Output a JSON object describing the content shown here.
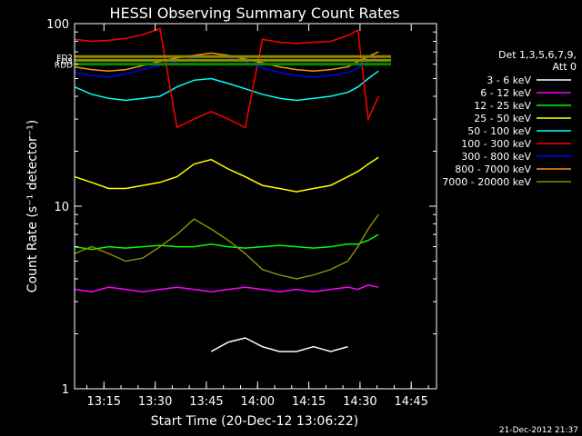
{
  "stamp": "21-Dec-2012 21:37",
  "chart_data": {
    "type": "line",
    "title": "HESSI Observing Summary Count Rates",
    "xlabel": "Start Time (20-Dec-12 13:06:22)",
    "ylabel": "Count Rate (s⁻¹ detector⁻¹)",
    "yscale": "log",
    "ylim": [
      1,
      100
    ],
    "xlim_minutes": [
      0,
      106
    ],
    "x_ticks": [
      {
        "label": "13:15",
        "t": 8.6
      },
      {
        "label": "13:30",
        "t": 23.6
      },
      {
        "label": "13:45",
        "t": 38.6
      },
      {
        "label": "14:00",
        "t": 53.6
      },
      {
        "label": "14:15",
        "t": 68.6
      },
      {
        "label": "14:30",
        "t": 83.6
      },
      {
        "label": "14:45",
        "t": 98.6
      }
    ],
    "y_ticks": [
      {
        "label": "1",
        "v": 1
      },
      {
        "label": "10",
        "v": 10
      },
      {
        "label": "100",
        "v": 100
      }
    ],
    "legend_header": [
      "Det 1,3,5,6,7,9,",
      "Att 0"
    ],
    "legend_position": "right",
    "series": [
      {
        "name": "3 - 6 keV",
        "color": "#ffffff",
        "points": [
          [
            40,
            1.6
          ],
          [
            45,
            1.8
          ],
          [
            50,
            1.9
          ],
          [
            55,
            1.7
          ],
          [
            60,
            1.6
          ],
          [
            65,
            1.6
          ],
          [
            70,
            1.7
          ],
          [
            75,
            1.6
          ],
          [
            80,
            1.7
          ]
        ]
      },
      {
        "name": "6 - 12 keV",
        "color": "#ff00ff",
        "points": [
          [
            0,
            3.5
          ],
          [
            5,
            3.4
          ],
          [
            10,
            3.6
          ],
          [
            15,
            3.5
          ],
          [
            20,
            3.4
          ],
          [
            25,
            3.5
          ],
          [
            30,
            3.6
          ],
          [
            35,
            3.5
          ],
          [
            40,
            3.4
          ],
          [
            45,
            3.5
          ],
          [
            50,
            3.6
          ],
          [
            55,
            3.5
          ],
          [
            60,
            3.4
          ],
          [
            65,
            3.5
          ],
          [
            70,
            3.4
          ],
          [
            75,
            3.5
          ],
          [
            80,
            3.6
          ],
          [
            83,
            3.5
          ],
          [
            86,
            3.7
          ],
          [
            89,
            3.6
          ]
        ]
      },
      {
        "name": "12 - 25 keV",
        "color": "#00ff00",
        "points": [
          [
            0,
            6.0
          ],
          [
            5,
            5.8
          ],
          [
            10,
            6.0
          ],
          [
            15,
            5.9
          ],
          [
            20,
            6.0
          ],
          [
            25,
            6.1
          ],
          [
            30,
            6.0
          ],
          [
            35,
            6.0
          ],
          [
            40,
            6.2
          ],
          [
            45,
            6.0
          ],
          [
            50,
            5.9
          ],
          [
            55,
            6.0
          ],
          [
            60,
            6.1
          ],
          [
            65,
            6.0
          ],
          [
            70,
            5.9
          ],
          [
            75,
            6.0
          ],
          [
            80,
            6.2
          ],
          [
            83,
            6.2
          ],
          [
            86,
            6.5
          ],
          [
            89,
            7.0
          ]
        ]
      },
      {
        "name": "25 - 50 keV",
        "color": "#ffff00",
        "points": [
          [
            0,
            14.5
          ],
          [
            5,
            13.5
          ],
          [
            10,
            12.5
          ],
          [
            15,
            12.5
          ],
          [
            20,
            13.0
          ],
          [
            25,
            13.5
          ],
          [
            30,
            14.5
          ],
          [
            35,
            17.0
          ],
          [
            40,
            18.0
          ],
          [
            45,
            16.0
          ],
          [
            50,
            14.5
          ],
          [
            55,
            13.0
          ],
          [
            60,
            12.5
          ],
          [
            65,
            12.0
          ],
          [
            70,
            12.5
          ],
          [
            75,
            13.0
          ],
          [
            80,
            14.5
          ],
          [
            83,
            15.5
          ],
          [
            86,
            17.0
          ],
          [
            89,
            18.5
          ]
        ]
      },
      {
        "name": "50 - 100 keV",
        "color": "#00ffff",
        "points": [
          [
            0,
            45
          ],
          [
            5,
            41
          ],
          [
            10,
            39
          ],
          [
            15,
            38
          ],
          [
            20,
            39
          ],
          [
            25,
            40
          ],
          [
            30,
            45
          ],
          [
            35,
            49
          ],
          [
            40,
            50
          ],
          [
            45,
            47
          ],
          [
            50,
            44
          ],
          [
            55,
            41
          ],
          [
            60,
            39
          ],
          [
            65,
            38
          ],
          [
            70,
            39
          ],
          [
            75,
            40
          ],
          [
            80,
            42
          ],
          [
            83,
            45
          ],
          [
            86,
            50
          ],
          [
            89,
            55
          ]
        ]
      },
      {
        "name": "100 - 300 keV",
        "color": "#ff0000",
        "points": [
          [
            0,
            82
          ],
          [
            5,
            80
          ],
          [
            10,
            81
          ],
          [
            15,
            83
          ],
          [
            20,
            87
          ],
          [
            25,
            94
          ],
          [
            30,
            27
          ],
          [
            35,
            30
          ],
          [
            40,
            33
          ],
          [
            45,
            30
          ],
          [
            50,
            27
          ],
          [
            55,
            82
          ],
          [
            60,
            79
          ],
          [
            65,
            78
          ],
          [
            70,
            79
          ],
          [
            75,
            80
          ],
          [
            80,
            86
          ],
          [
            83,
            92
          ],
          [
            86,
            30
          ],
          [
            89,
            40
          ]
        ]
      },
      {
        "name": "300 - 800 keV",
        "color": "#0000ff",
        "points": [
          [
            0,
            54
          ],
          [
            5,
            52
          ],
          [
            10,
            51
          ],
          [
            15,
            53
          ],
          [
            20,
            56
          ],
          [
            25,
            59
          ],
          [
            30,
            62
          ],
          [
            35,
            65
          ],
          [
            40,
            67
          ],
          [
            45,
            65
          ],
          [
            50,
            62
          ],
          [
            55,
            57
          ],
          [
            60,
            54
          ],
          [
            65,
            52
          ],
          [
            70,
            51
          ],
          [
            75,
            52
          ],
          [
            80,
            54
          ],
          [
            83,
            57
          ],
          [
            86,
            62
          ],
          [
            89,
            66
          ]
        ]
      },
      {
        "name": "800 - 7000 keV",
        "color": "#ff8c1e",
        "points": [
          [
            0,
            58
          ],
          [
            5,
            56
          ],
          [
            10,
            55
          ],
          [
            15,
            56
          ],
          [
            20,
            59
          ],
          [
            25,
            62
          ],
          [
            30,
            65
          ],
          [
            35,
            67
          ],
          [
            40,
            69
          ],
          [
            45,
            67
          ],
          [
            50,
            64
          ],
          [
            55,
            61
          ],
          [
            60,
            58
          ],
          [
            65,
            56
          ],
          [
            70,
            55
          ],
          [
            75,
            56
          ],
          [
            80,
            58
          ],
          [
            83,
            62
          ],
          [
            86,
            66
          ],
          [
            89,
            70
          ]
        ]
      },
      {
        "name": "7000 - 20000 keV",
        "color": "#8c8c00",
        "points": [
          [
            0,
            5.5
          ],
          [
            5,
            6.0
          ],
          [
            10,
            5.5
          ],
          [
            15,
            5.0
          ],
          [
            20,
            5.2
          ],
          [
            25,
            6.0
          ],
          [
            30,
            7.0
          ],
          [
            35,
            8.5
          ],
          [
            40,
            7.5
          ],
          [
            45,
            6.5
          ],
          [
            50,
            5.5
          ],
          [
            55,
            4.5
          ],
          [
            60,
            4.2
          ],
          [
            65,
            4.0
          ],
          [
            70,
            4.2
          ],
          [
            75,
            4.5
          ],
          [
            80,
            5.0
          ],
          [
            83,
            6.0
          ],
          [
            86,
            7.5
          ],
          [
            89,
            9.0
          ]
        ]
      }
    ],
    "annotations": [
      {
        "label": "FD2",
        "v": 66
      },
      {
        "label": "FD3",
        "v": 63
      },
      {
        "label": "RDD",
        "v": 60
      }
    ]
  }
}
